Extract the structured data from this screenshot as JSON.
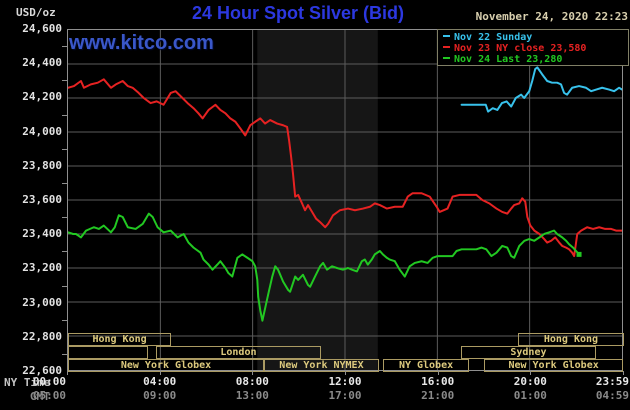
{
  "header": {
    "unit_label": "USD/oz",
    "title": "24 Hour Spot Silver (Bid)",
    "datetime": "November 24, 2020 22:23",
    "watermark": "www.kitco.com"
  },
  "legend": {
    "items": [
      {
        "label": "Nov 22 Sunday",
        "color": "#38c2ec"
      },
      {
        "label": "Nov 23 NY close 23,580",
        "color": "#e62222"
      },
      {
        "label": "Nov 24 Last 23,280",
        "color": "#22c822"
      }
    ]
  },
  "axes": {
    "ny_label": "NY Time",
    "gmt_label": "GMT",
    "y_ticks": [
      "24,600",
      "24,400",
      "24,200",
      "24,000",
      "23,800",
      "23,600",
      "23,400",
      "23,200",
      "23,000",
      "22,800",
      "22,600"
    ],
    "x_ticks": [
      {
        "h": 0,
        "ny": "00:00",
        "gmt": "05:00",
        "align": "frameRight"
      },
      {
        "h": 4,
        "ny": "04:00",
        "gmt": "09:00",
        "align": "center"
      },
      {
        "h": 8,
        "ny": "08:00",
        "gmt": "13:00",
        "align": "center"
      },
      {
        "h": 12,
        "ny": "12:00",
        "gmt": "17:00",
        "align": "center"
      },
      {
        "h": 16,
        "ny": "16:00",
        "gmt": "21:00",
        "align": "center"
      },
      {
        "h": 20,
        "ny": "20:00",
        "gmt": "01:00",
        "align": "center"
      },
      {
        "h": 24,
        "ny": "23:59",
        "gmt": "04:59",
        "align": "rightEdge"
      }
    ]
  },
  "sessions": {
    "rows": [
      [
        {
          "label": "Hong Kong",
          "start": 0,
          "end": 4.45
        },
        {
          "label": "Hong Kong",
          "start": 19.42,
          "end": 24
        }
      ],
      [
        {
          "label": "",
          "start": 0,
          "end": 3.45
        },
        {
          "label": "London",
          "start": 3.8,
          "end": 10.92
        },
        {
          "label": "Sydney",
          "start": 16.96,
          "end": 22.79
        }
      ],
      [
        {
          "label": "New York Globex",
          "start": 0,
          "end": 8.46
        },
        {
          "label": "New York NYMEX",
          "start": 8.46,
          "end": 13.42
        },
        {
          "label": "NY Globex",
          "start": 13.6,
          "end": 17.31
        },
        {
          "label": "New York Globex",
          "start": 17.96,
          "end": 23.96
        }
      ]
    ]
  },
  "colors": {
    "grid": "#5c5c5c",
    "frame": "#8f8f8f",
    "band": "#161616",
    "session_border": "#ab9b63",
    "session_text": "#ddca7e"
  },
  "chart_data": {
    "type": "line",
    "title": "24 Hour Spot Silver (Bid)",
    "xlabel": "NY Time / GMT",
    "ylabel": "USD/oz",
    "xlim_hours": [
      0,
      24
    ],
    "ylim": [
      22.6,
      24.6
    ],
    "y_step": 0.2,
    "grid": true,
    "legend_position": "top-right",
    "nymex_shaded_band_hours": {
      "start": 8.2,
      "end": 13.42
    },
    "series": [
      {
        "name": "Nov 22 Sunday",
        "color": "#38c2ec",
        "end_marker": false,
        "points": [
          [
            17.05,
            24.16
          ],
          [
            18.1,
            24.16
          ],
          [
            18.2,
            24.12
          ],
          [
            18.4,
            24.14
          ],
          [
            18.6,
            24.13
          ],
          [
            18.8,
            24.17
          ],
          [
            19.0,
            24.18
          ],
          [
            19.2,
            24.15
          ],
          [
            19.4,
            24.2
          ],
          [
            19.63,
            24.22
          ],
          [
            19.76,
            24.2
          ],
          [
            19.98,
            24.24
          ],
          [
            20.11,
            24.3
          ],
          [
            20.24,
            24.37
          ],
          [
            20.33,
            24.38
          ],
          [
            20.54,
            24.34
          ],
          [
            20.76,
            24.3
          ],
          [
            20.97,
            24.29
          ],
          [
            21.19,
            24.29
          ],
          [
            21.36,
            24.28
          ],
          [
            21.49,
            24.23
          ],
          [
            21.62,
            24.22
          ],
          [
            21.84,
            24.26
          ],
          [
            22.14,
            24.27
          ],
          [
            22.44,
            24.26
          ],
          [
            22.66,
            24.24
          ],
          [
            22.88,
            24.25
          ],
          [
            23.14,
            24.26
          ],
          [
            23.44,
            24.25
          ],
          [
            23.66,
            24.24
          ],
          [
            23.87,
            24.26
          ],
          [
            24,
            24.25
          ]
        ]
      },
      {
        "name": "Nov 23 NY close 23,580",
        "color": "#e62222",
        "end_marker": false,
        "points": [
          [
            0,
            24.26
          ],
          [
            0.26,
            24.27
          ],
          [
            0.56,
            24.3
          ],
          [
            0.69,
            24.26
          ],
          [
            0.99,
            24.28
          ],
          [
            1.29,
            24.29
          ],
          [
            1.55,
            24.31
          ],
          [
            1.86,
            24.26
          ],
          [
            2.07,
            24.28
          ],
          [
            2.37,
            24.3
          ],
          [
            2.59,
            24.27
          ],
          [
            2.8,
            24.26
          ],
          [
            3.06,
            24.23
          ],
          [
            3.28,
            24.2
          ],
          [
            3.58,
            24.17
          ],
          [
            3.84,
            24.18
          ],
          [
            4.14,
            24.16
          ],
          [
            4.45,
            24.23
          ],
          [
            4.66,
            24.24
          ],
          [
            4.96,
            24.2
          ],
          [
            5.18,
            24.17
          ],
          [
            5.44,
            24.14
          ],
          [
            5.65,
            24.11
          ],
          [
            5.83,
            24.08
          ],
          [
            6.09,
            24.13
          ],
          [
            6.39,
            24.16
          ],
          [
            6.6,
            24.13
          ],
          [
            6.82,
            24.11
          ],
          [
            7.03,
            24.08
          ],
          [
            7.25,
            24.06
          ],
          [
            7.47,
            24.02
          ],
          [
            7.68,
            23.98
          ],
          [
            7.9,
            24.04
          ],
          [
            8.11,
            24.06
          ],
          [
            8.33,
            24.08
          ],
          [
            8.54,
            24.05
          ],
          [
            8.76,
            24.07
          ],
          [
            9.06,
            24.05
          ],
          [
            9.32,
            24.04
          ],
          [
            9.49,
            24.03
          ],
          [
            9.58,
            23.95
          ],
          [
            9.67,
            23.85
          ],
          [
            9.75,
            23.75
          ],
          [
            9.84,
            23.62
          ],
          [
            9.97,
            23.63
          ],
          [
            10.14,
            23.58
          ],
          [
            10.27,
            23.54
          ],
          [
            10.4,
            23.57
          ],
          [
            10.62,
            23.52
          ],
          [
            10.75,
            23.49
          ],
          [
            10.92,
            23.47
          ],
          [
            11.14,
            23.44
          ],
          [
            11.27,
            23.46
          ],
          [
            11.48,
            23.51
          ],
          [
            11.78,
            23.54
          ],
          [
            12.13,
            23.55
          ],
          [
            12.43,
            23.54
          ],
          [
            12.78,
            23.55
          ],
          [
            13.08,
            23.56
          ],
          [
            13.29,
            23.58
          ],
          [
            13.51,
            23.57
          ],
          [
            13.81,
            23.55
          ],
          [
            14.16,
            23.56
          ],
          [
            14.5,
            23.56
          ],
          [
            14.72,
            23.62
          ],
          [
            14.93,
            23.64
          ],
          [
            15.32,
            23.64
          ],
          [
            15.67,
            23.62
          ],
          [
            15.97,
            23.56
          ],
          [
            16.1,
            23.53
          ],
          [
            16.44,
            23.55
          ],
          [
            16.66,
            23.62
          ],
          [
            16.96,
            23.63
          ],
          [
            17.39,
            23.63
          ],
          [
            17.69,
            23.63
          ],
          [
            17.95,
            23.6
          ],
          [
            18.25,
            23.58
          ],
          [
            18.56,
            23.55
          ],
          [
            18.81,
            23.53
          ],
          [
            19.03,
            23.52
          ],
          [
            19.2,
            23.55
          ],
          [
            19.33,
            23.57
          ],
          [
            19.55,
            23.58
          ],
          [
            19.68,
            23.61
          ],
          [
            19.81,
            23.59
          ],
          [
            19.9,
            23.5
          ],
          [
            20.03,
            23.45
          ],
          [
            20.2,
            23.42
          ],
          [
            20.42,
            23.4
          ],
          [
            20.63,
            23.37
          ],
          [
            20.76,
            23.35
          ],
          [
            20.93,
            23.36
          ],
          [
            21.11,
            23.38
          ],
          [
            21.28,
            23.35
          ],
          [
            21.41,
            23.33
          ],
          [
            21.58,
            23.32
          ],
          [
            21.71,
            23.31
          ],
          [
            21.84,
            23.29
          ],
          [
            21.93,
            23.27
          ],
          [
            22.06,
            23.4
          ],
          [
            22.23,
            23.42
          ],
          [
            22.49,
            23.44
          ],
          [
            22.75,
            23.43
          ],
          [
            23.01,
            23.44
          ],
          [
            23.27,
            23.43
          ],
          [
            23.53,
            23.43
          ],
          [
            23.74,
            23.42
          ],
          [
            24,
            23.42
          ]
        ]
      },
      {
        "name": "Nov 24 Last 23,280",
        "color": "#22c822",
        "end_marker": true,
        "points": [
          [
            0,
            23.41
          ],
          [
            0.22,
            23.4
          ],
          [
            0.35,
            23.4
          ],
          [
            0.56,
            23.38
          ],
          [
            0.78,
            23.42
          ],
          [
            1.12,
            23.44
          ],
          [
            1.34,
            23.43
          ],
          [
            1.55,
            23.45
          ],
          [
            1.86,
            23.41
          ],
          [
            2.03,
            23.44
          ],
          [
            2.2,
            23.51
          ],
          [
            2.37,
            23.5
          ],
          [
            2.59,
            23.44
          ],
          [
            2.93,
            23.43
          ],
          [
            3.24,
            23.46
          ],
          [
            3.5,
            23.52
          ],
          [
            3.67,
            23.5
          ],
          [
            3.88,
            23.44
          ],
          [
            4.14,
            23.41
          ],
          [
            4.45,
            23.42
          ],
          [
            4.75,
            23.38
          ],
          [
            5.01,
            23.4
          ],
          [
            5.22,
            23.35
          ],
          [
            5.44,
            23.32
          ],
          [
            5.74,
            23.29
          ],
          [
            5.87,
            23.25
          ],
          [
            6.09,
            23.22
          ],
          [
            6.26,
            23.19
          ],
          [
            6.47,
            23.22
          ],
          [
            6.6,
            23.24
          ],
          [
            6.82,
            23.2
          ],
          [
            6.95,
            23.17
          ],
          [
            7.12,
            23.15
          ],
          [
            7.34,
            23.26
          ],
          [
            7.55,
            23.28
          ],
          [
            7.77,
            23.26
          ],
          [
            7.99,
            23.24
          ],
          [
            8.11,
            23.21
          ],
          [
            8.2,
            23.13
          ],
          [
            8.24,
            23.03
          ],
          [
            8.33,
            22.95
          ],
          [
            8.42,
            22.89
          ],
          [
            8.55,
            22.97
          ],
          [
            8.68,
            23.05
          ],
          [
            8.85,
            23.15
          ],
          [
            8.98,
            23.21
          ],
          [
            9.1,
            23.19
          ],
          [
            9.32,
            23.12
          ],
          [
            9.54,
            23.07
          ],
          [
            9.62,
            23.06
          ],
          [
            9.84,
            23.15
          ],
          [
            9.97,
            23.13
          ],
          [
            10.18,
            23.16
          ],
          [
            10.4,
            23.1
          ],
          [
            10.49,
            23.09
          ],
          [
            10.7,
            23.15
          ],
          [
            10.92,
            23.21
          ],
          [
            11.05,
            23.23
          ],
          [
            11.22,
            23.19
          ],
          [
            11.44,
            23.21
          ],
          [
            11.65,
            23.2
          ],
          [
            11.91,
            23.19
          ],
          [
            12.13,
            23.2
          ],
          [
            12.3,
            23.19
          ],
          [
            12.52,
            23.18
          ],
          [
            12.73,
            23.24
          ],
          [
            12.86,
            23.25
          ],
          [
            12.99,
            23.22
          ],
          [
            13.16,
            23.25
          ],
          [
            13.29,
            23.28
          ],
          [
            13.51,
            23.3
          ],
          [
            13.64,
            23.28
          ],
          [
            13.81,
            23.26
          ],
          [
            13.94,
            23.25
          ],
          [
            14.16,
            23.24
          ],
          [
            14.37,
            23.19
          ],
          [
            14.59,
            23.15
          ],
          [
            14.8,
            23.21
          ],
          [
            15.02,
            23.23
          ],
          [
            15.32,
            23.24
          ],
          [
            15.58,
            23.23
          ],
          [
            15.8,
            23.26
          ],
          [
            16.01,
            23.27
          ],
          [
            16.31,
            23.27
          ],
          [
            16.66,
            23.27
          ],
          [
            16.83,
            23.3
          ],
          [
            17.05,
            23.31
          ],
          [
            17.39,
            23.31
          ],
          [
            17.69,
            23.31
          ],
          [
            17.91,
            23.32
          ],
          [
            18.12,
            23.31
          ],
          [
            18.34,
            23.27
          ],
          [
            18.56,
            23.29
          ],
          [
            18.81,
            23.33
          ],
          [
            19.03,
            23.32
          ],
          [
            19.2,
            23.27
          ],
          [
            19.33,
            23.26
          ],
          [
            19.55,
            23.33
          ],
          [
            19.77,
            23.36
          ],
          [
            19.98,
            23.37
          ],
          [
            20.2,
            23.36
          ],
          [
            20.42,
            23.38
          ],
          [
            20.63,
            23.4
          ],
          [
            20.85,
            23.41
          ],
          [
            21.06,
            23.42
          ],
          [
            21.19,
            23.4
          ],
          [
            21.41,
            23.38
          ],
          [
            21.58,
            23.36
          ],
          [
            21.71,
            23.34
          ],
          [
            21.88,
            23.32
          ],
          [
            22.01,
            23.3
          ],
          [
            22.14,
            23.28
          ]
        ]
      }
    ]
  }
}
